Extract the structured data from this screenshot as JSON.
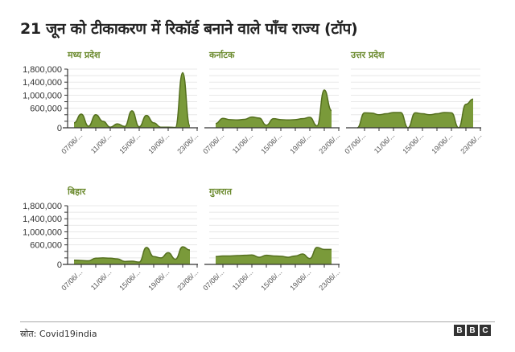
{
  "title": "21 जून को टीकाकरण में रिकॉर्ड बनाने वाले पाँच राज्य (टॉप)",
  "footer": {
    "source": "स्रोत: Covid19india",
    "logo": [
      "B",
      "B",
      "C"
    ]
  },
  "colors": {
    "fill": "#7a9a3a",
    "stroke": "#55701f",
    "panel_title": "#6b8a2e",
    "grid": "#e8e8e8",
    "axis": "#333333"
  },
  "chart_data": [
    {
      "type": "area",
      "title": "मध्य प्रदेश",
      "x": [
        "06/06",
        "07/06",
        "08/06",
        "09/06",
        "10/06",
        "11/06",
        "12/06",
        "13/06",
        "14/06",
        "15/06",
        "16/06",
        "17/06",
        "18/06",
        "19/06",
        "20/06",
        "21/06",
        "22/06"
      ],
      "values": [
        150000,
        420000,
        50000,
        400000,
        200000,
        20000,
        120000,
        40000,
        520000,
        30000,
        380000,
        150000,
        20000,
        20000,
        10000,
        1690000,
        60000
      ],
      "xticks": [
        "07/06/...",
        "11/06/...",
        "15/06/...",
        "19/06/...",
        "23/06/..."
      ],
      "yticks": [
        "0",
        "600,000",
        "1,000,000",
        "1,400,000",
        "1,800,000"
      ],
      "ylim": [
        0,
        1800000
      ]
    },
    {
      "type": "area",
      "title": "कर्नाटक",
      "x": [
        "06/06",
        "07/06",
        "08/06",
        "09/06",
        "10/06",
        "11/06",
        "12/06",
        "13/06",
        "14/06",
        "15/06",
        "16/06",
        "17/06",
        "18/06",
        "19/06",
        "20/06",
        "21/06",
        "22/06"
      ],
      "values": [
        130000,
        290000,
        250000,
        240000,
        260000,
        330000,
        300000,
        80000,
        280000,
        250000,
        240000,
        250000,
        280000,
        320000,
        60000,
        1160000,
        530000
      ],
      "xticks": [
        "07/06/...",
        "11/06/...",
        "15/06/...",
        "19/06/...",
        "23/06/..."
      ],
      "ylim": [
        0,
        1800000
      ]
    },
    {
      "type": "area",
      "title": "उत्तर प्रदेश",
      "x": [
        "06/06",
        "07/06",
        "08/06",
        "09/06",
        "10/06",
        "11/06",
        "12/06",
        "13/06",
        "14/06",
        "15/06",
        "16/06",
        "17/06",
        "18/06",
        "19/06",
        "20/06",
        "21/06",
        "22/06"
      ],
      "values": [
        0,
        460000,
        450000,
        400000,
        430000,
        470000,
        470000,
        0,
        460000,
        430000,
        400000,
        430000,
        470000,
        460000,
        0,
        720000,
        880000
      ],
      "xticks": [
        "07/06/...",
        "11/06/...",
        "15/06/...",
        "19/06/...",
        "23/06/..."
      ],
      "ylim": [
        0,
        1800000
      ]
    },
    {
      "type": "area",
      "title": "बिहार",
      "x": [
        "06/06",
        "07/06",
        "08/06",
        "09/06",
        "10/06",
        "11/06",
        "12/06",
        "13/06",
        "14/06",
        "15/06",
        "16/06",
        "17/06",
        "18/06",
        "19/06",
        "20/06",
        "21/06",
        "22/06"
      ],
      "values": [
        130000,
        120000,
        110000,
        190000,
        200000,
        190000,
        170000,
        90000,
        100000,
        70000,
        520000,
        240000,
        200000,
        360000,
        160000,
        540000,
        440000
      ],
      "xticks": [
        "07/06/...",
        "11/06/...",
        "15/06/...",
        "19/06/...",
        "23/06/..."
      ],
      "yticks": [
        "0",
        "600,000",
        "1,000,000",
        "1,400,000",
        "1,800,000"
      ],
      "ylim": [
        0,
        1800000
      ]
    },
    {
      "type": "area",
      "title": "गुजरात",
      "x": [
        "06/06",
        "07/06",
        "08/06",
        "09/06",
        "10/06",
        "11/06",
        "12/06",
        "13/06",
        "14/06",
        "15/06",
        "16/06",
        "17/06",
        "18/06",
        "19/06",
        "20/06",
        "21/06",
        "22/06"
      ],
      "values": [
        240000,
        260000,
        260000,
        270000,
        280000,
        290000,
        220000,
        280000,
        260000,
        250000,
        220000,
        260000,
        320000,
        180000,
        520000,
        460000,
        460000
      ],
      "xticks": [
        "07/06/...",
        "11/06/...",
        "15/06/...",
        "19/06/...",
        "23/06/..."
      ],
      "ylim": [
        0,
        1800000
      ]
    }
  ]
}
